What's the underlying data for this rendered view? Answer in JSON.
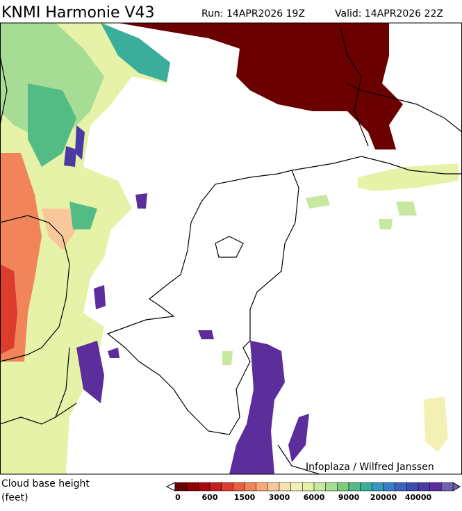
{
  "header": {
    "title": "KNMI Harmonie V43",
    "run": "Run: 14APR2026 19Z",
    "valid": "Valid: 14APR2026 22Z"
  },
  "map": {
    "credit": "Infoplaza / Wilfred Janssen"
  },
  "legend": {
    "title": "Cloud base height",
    "unit": "(feet)",
    "colors": [
      "#6b0000",
      "#8c0000",
      "#a80a0a",
      "#c41e1e",
      "#dc3c2c",
      "#ec5f40",
      "#f2845a",
      "#f6a878",
      "#f8c89a",
      "#f8e0b0",
      "#f4f0b4",
      "#e6f2a8",
      "#c8e8a0",
      "#a6dc94",
      "#7ccc7c",
      "#52bc84",
      "#3aae9a",
      "#3898c0",
      "#3a7ec8",
      "#3c62c0",
      "#3c4ab0",
      "#4a3aa4",
      "#5c2e9c",
      "#7060b0"
    ],
    "ticks": [
      0,
      600,
      1500,
      3000,
      6000,
      9000,
      20000,
      40000
    ]
  }
}
